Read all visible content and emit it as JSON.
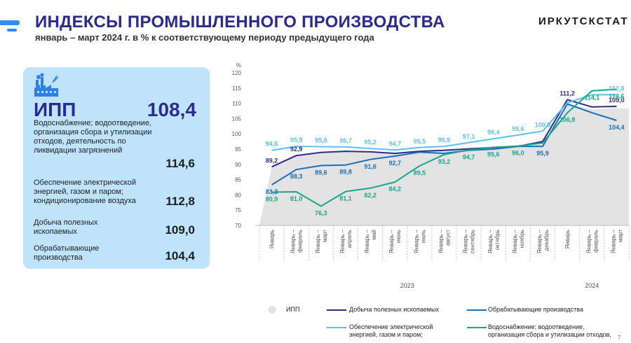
{
  "header": {
    "title": "ИНДЕКСЫ ПРОМЫШЛЕННОГО ПРОИЗВОДСТВА",
    "subtitle": "январь – март 2024 г. в % к соответствующему периоду предыдущего года",
    "brand": "ИРКУТСКСТАТ"
  },
  "summary": {
    "icon": "factory-icon",
    "ipp_label": "ИПП",
    "ipp_value": "108,4",
    "rows": [
      {
        "label": "Водоснабжение; водоотведение, организация сбора и утилизации отходов, деятельность по ликвидации загрязнений",
        "value": "114,6"
      },
      {
        "label": "Обеспечение электрической энергией, газом и паром; кондиционирование воздуха",
        "value": "112,8"
      },
      {
        "label": "Добыча полезных ископаемых",
        "value": "109,0"
      },
      {
        "label": "Обрабатывающие производства",
        "value": "104,4"
      }
    ]
  },
  "chart_data": {
    "type": "line",
    "title": "",
    "ylabel": "%",
    "ylim": [
      70,
      120
    ],
    "yticks": [
      70,
      75,
      80,
      85,
      90,
      95,
      100,
      105,
      110,
      115,
      120
    ],
    "categories": [
      "Январь",
      "Январь – февраль",
      "Январь – март",
      "Январь – апрель",
      "Январь – май",
      "Январь – июнь",
      "Январь – июль",
      "Январь – август",
      "Январь – сентябрь",
      "Январь – октябрь",
      "Январь – ноябрь",
      "Январь – декабрь",
      "Январь",
      "Январь – февраль",
      "Январь – март"
    ],
    "category_lines": [
      [
        "Январь"
      ],
      [
        "Январь –",
        "февраль"
      ],
      [
        "Январь –",
        "март"
      ],
      [
        "Январь –",
        "апрель"
      ],
      [
        "Январь –",
        "май"
      ],
      [
        "Январь –",
        "июнь"
      ],
      [
        "Январь –",
        "июль"
      ],
      [
        "Январь –",
        "август"
      ],
      [
        "Январь –",
        "сентябрь"
      ],
      [
        "Январь –",
        "октябрь"
      ],
      [
        "Январь –",
        "ноябрь"
      ],
      [
        "Январь –",
        "декабрь"
      ],
      [
        "Январь"
      ],
      [
        "Январь –",
        "февраль"
      ],
      [
        "Январь –",
        "март"
      ]
    ],
    "year_groups": [
      {
        "label": "2023",
        "start": 0,
        "end": 11
      },
      {
        "label": "2024",
        "start": 12,
        "end": 14
      }
    ],
    "series": [
      {
        "name": "ИПП",
        "type": "area",
        "color": "#e3e3e3",
        "values": [
          89.2,
          93.0,
          93.9,
          94.3,
          94.1,
          93.6,
          94.3,
          94.6,
          95.1,
          95.5,
          95.9,
          97.8,
          109.8,
          108.0,
          108.4
        ],
        "labels": []
      },
      {
        "name": "Добыча полезных ископаемых",
        "color": "#2f2a8c",
        "values": [
          89.2,
          92.9,
          93.9,
          94.3,
          94.1,
          93.6,
          94.3,
          94.6,
          95.1,
          95.5,
          95.9,
          97.5,
          111.2,
          108.8,
          109.0
        ],
        "labels": [
          "89,2",
          "92,9",
          "",
          "",
          "",
          "",
          "",
          "",
          "",
          "",
          "",
          "",
          "111,2",
          "",
          "109,0"
        ]
      },
      {
        "name": "Обрабатывающие производства",
        "color": "#1d6fb8",
        "values": [
          83.3,
          88.3,
          89.6,
          89.8,
          91.6,
          92.7,
          94.0,
          93.6,
          94.6,
          95.0,
          95.9,
          95.9,
          109.8,
          106.9,
          104.4
        ],
        "labels": [
          "83,3",
          "88,3",
          "89,6",
          "89,8",
          "91,6",
          "92,7",
          "",
          "",
          "",
          "",
          "",
          "95,9",
          "",
          "",
          "104,4"
        ]
      },
      {
        "name": "Обеспечение электрической энергией, газом и паром;",
        "color": "#5cc0f5",
        "values": [
          94.6,
          95.9,
          95.8,
          95.7,
          95.2,
          94.7,
          95.5,
          95.9,
          97.1,
          98.4,
          99.6,
          100.9,
          110.2,
          112.8,
          112.8
        ],
        "labels": [
          "94,6",
          "95,9",
          "95,8",
          "95,7",
          "95,2",
          "94,7",
          "95,5",
          "95,9",
          "97,1",
          "98,4",
          "99,6",
          "100,9",
          "",
          "",
          "112,8"
        ]
      },
      {
        "name": "Водоснабжение; водоотведение, организация сбора и утилизации отходов,",
        "color": "#19a58e",
        "values": [
          80.9,
          81.0,
          76.3,
          81.1,
          82.2,
          84.2,
          89.5,
          93.2,
          94.7,
          95.6,
          96.0,
          97.0,
          106.9,
          114.1,
          114.6
        ],
        "labels": [
          "80,9",
          "81,0",
          "76,3",
          "81,1",
          "82,2",
          "84,2",
          "89,5",
          "93,2",
          "94,7",
          "95,6",
          "96,0",
          "",
          "106,9",
          "114,1",
          "114,6"
        ]
      }
    ]
  },
  "legend": [
    {
      "name": "ИПП",
      "color": "#e3e3e3",
      "kind": "dot"
    },
    {
      "name": "Добыча полезных ископаемых",
      "color": "#2f2a8c",
      "kind": "line"
    },
    {
      "name": "Обрабатывающие производства",
      "color": "#1d6fb8",
      "kind": "line"
    },
    {
      "name": "Обеспечение электрической энергией, газом и паром;",
      "color": "#5cc0f5",
      "kind": "line"
    },
    {
      "name": "Водоснабжение; водоотведение, организация сбора и утилизации отходов,",
      "color": "#19a58e",
      "kind": "line"
    }
  ],
  "page_number": "7"
}
